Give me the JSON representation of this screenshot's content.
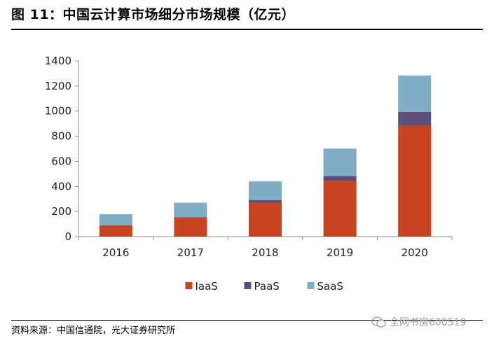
{
  "header": {
    "title": "图 11：中国云计算市场细分市场规模（亿元）"
  },
  "footer": {
    "source": "资料来源：中国信通院，光大证券研究所",
    "watermark": "全网书房600519"
  },
  "chart_data": {
    "type": "bar",
    "stacked": true,
    "categories": [
      "2016",
      "2017",
      "2018",
      "2019",
      "2020"
    ],
    "series": [
      {
        "name": "IaaS",
        "color": "#C9431F",
        "values": [
          87,
          150,
          270,
          443,
          887
        ]
      },
      {
        "name": "PaaS",
        "color": "#5A4F7D",
        "values": [
          3,
          5,
          20,
          40,
          107
        ]
      },
      {
        "name": "SaaS",
        "color": "#7FAEC4",
        "values": [
          88,
          115,
          150,
          218,
          290
        ]
      }
    ],
    "ylim": [
      0,
      1400
    ],
    "yticks": [
      0,
      200,
      400,
      600,
      800,
      1000,
      1200,
      1400
    ],
    "grid": false,
    "legend": "bottom"
  }
}
